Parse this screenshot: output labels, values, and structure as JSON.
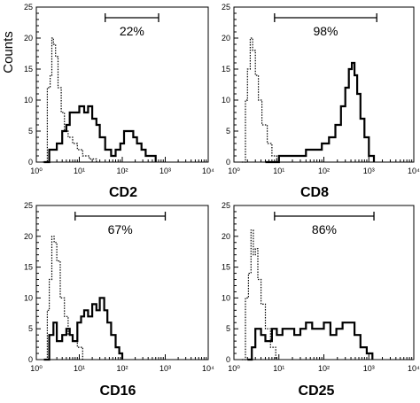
{
  "figure": {
    "ylabel": "Counts"
  },
  "chart_data": [
    {
      "type": "line",
      "title": "CD2",
      "gate_label": "22%",
      "gate_range": [
        40,
        700
      ],
      "xlabel": "",
      "ylabel": "Counts",
      "xscale": "log",
      "xlim": [
        1,
        10000
      ],
      "ylim": [
        0,
        25
      ],
      "xticks": [
        "10⁰",
        "10¹",
        "10²",
        "10³",
        "10⁴"
      ],
      "yticks": [
        "0",
        "5",
        "10",
        "15",
        "20",
        "25"
      ],
      "series": [
        {
          "style": "dotted",
          "x": [
            1.4,
            1.8,
            2.1,
            2.3,
            2.5,
            2.8,
            3.2,
            3.8,
            4.5,
            5.5,
            7,
            9,
            12,
            17,
            25
          ],
          "y": [
            0,
            12,
            14,
            20,
            19,
            17,
            12,
            8,
            5,
            4,
            3,
            2,
            1,
            0.5,
            0
          ]
        },
        {
          "style": "solid",
          "x": [
            1.5,
            2,
            3,
            4,
            5,
            6,
            8,
            10,
            13,
            16,
            20,
            25,
            30,
            40,
            55,
            70,
            90,
            110,
            140,
            180,
            220,
            280,
            350,
            450,
            600
          ],
          "y": [
            0,
            2,
            3,
            5,
            6,
            8,
            8,
            9,
            8,
            9,
            7,
            6,
            4,
            2,
            1,
            2,
            3,
            5,
            5,
            4,
            3,
            2,
            1,
            1,
            0
          ]
        }
      ]
    },
    {
      "type": "line",
      "title": "CD8",
      "gate_label": "98%",
      "gate_range": [
        8,
        1500
      ],
      "xlabel": "",
      "ylabel": "",
      "xscale": "log",
      "xlim": [
        1,
        10000
      ],
      "ylim": [
        0,
        25
      ],
      "xticks": [
        "10⁰",
        "10¹",
        "10²",
        "10³",
        "10⁴"
      ],
      "yticks": [
        "0",
        "5",
        "10",
        "15",
        "20",
        "25"
      ],
      "series": [
        {
          "style": "dotted",
          "x": [
            1.5,
            1.8,
            2.0,
            2.3,
            2.6,
            3.0,
            3.5,
            4.2,
            5.5,
            7,
            9
          ],
          "y": [
            0,
            10,
            15,
            20,
            18,
            14,
            10,
            6,
            3,
            1,
            0
          ]
        },
        {
          "style": "solid",
          "x": [
            5,
            10,
            20,
            40,
            60,
            90,
            130,
            180,
            240,
            300,
            360,
            420,
            480,
            550,
            650,
            800,
            1000,
            1300
          ],
          "y": [
            0,
            1,
            1,
            2,
            2,
            3,
            4,
            6,
            9,
            12,
            15,
            16,
            14,
            11,
            7,
            4,
            1,
            0
          ]
        }
      ]
    },
    {
      "type": "line",
      "title": "CD16",
      "gate_label": "67%",
      "gate_range": [
        8,
        1000
      ],
      "xlabel": "",
      "ylabel": "",
      "xscale": "log",
      "xlim": [
        1,
        10000
      ],
      "ylim": [
        0,
        25
      ],
      "xticks": [
        "10⁰",
        "10¹",
        "10²",
        "10³",
        "10⁴"
      ],
      "yticks": [
        "0",
        "5",
        "10",
        "15",
        "20",
        "25"
      ],
      "series": [
        {
          "style": "dotted",
          "x": [
            1.5,
            1.8,
            2.0,
            2.3,
            2.6,
            3.0,
            3.6,
            4.5,
            5.5,
            7,
            9,
            12
          ],
          "y": [
            0,
            8,
            13,
            20,
            19,
            16,
            10,
            7,
            4,
            3,
            2,
            0
          ]
        },
        {
          "style": "solid",
          "x": [
            1.5,
            2,
            2.5,
            3,
            4,
            5,
            6,
            7,
            9,
            11,
            13,
            16,
            20,
            25,
            30,
            38,
            45,
            55,
            70,
            85,
            100
          ],
          "y": [
            0,
            4,
            6,
            3,
            4,
            5,
            4,
            3,
            6,
            7,
            8,
            7,
            9,
            8,
            10,
            8,
            6,
            4,
            2,
            1,
            0
          ]
        }
      ]
    },
    {
      "type": "line",
      "title": "CD25",
      "gate_label": "86%",
      "gate_range": [
        8,
        1300
      ],
      "xlabel": "",
      "ylabel": "",
      "xscale": "log",
      "xlim": [
        1,
        10000
      ],
      "ylim": [
        0,
        25
      ],
      "xticks": [
        "10⁰",
        "10¹",
        "10²",
        "10³",
        "10⁴"
      ],
      "yticks": [
        "0",
        "5",
        "10",
        "15",
        "20",
        "25"
      ],
      "series": [
        {
          "style": "dotted",
          "x": [
            1.5,
            1.8,
            2.1,
            2.4,
            2.7,
            3.0,
            3.4,
            4.0,
            5.0,
            6.5,
            8.5
          ],
          "y": [
            0,
            10,
            14,
            21,
            17,
            18,
            13,
            9,
            5,
            2,
            0
          ]
        },
        {
          "style": "solid",
          "x": [
            2,
            2.5,
            3,
            4,
            5,
            7,
            9,
            12,
            16,
            22,
            30,
            40,
            55,
            75,
            100,
            140,
            190,
            260,
            350,
            480,
            650,
            900,
            1200
          ],
          "y": [
            0,
            2,
            5,
            4,
            3,
            5,
            4,
            5,
            5,
            4,
            5,
            6,
            5,
            5,
            6,
            4,
            5,
            6,
            6,
            4,
            2,
            1,
            0
          ]
        }
      ]
    }
  ]
}
